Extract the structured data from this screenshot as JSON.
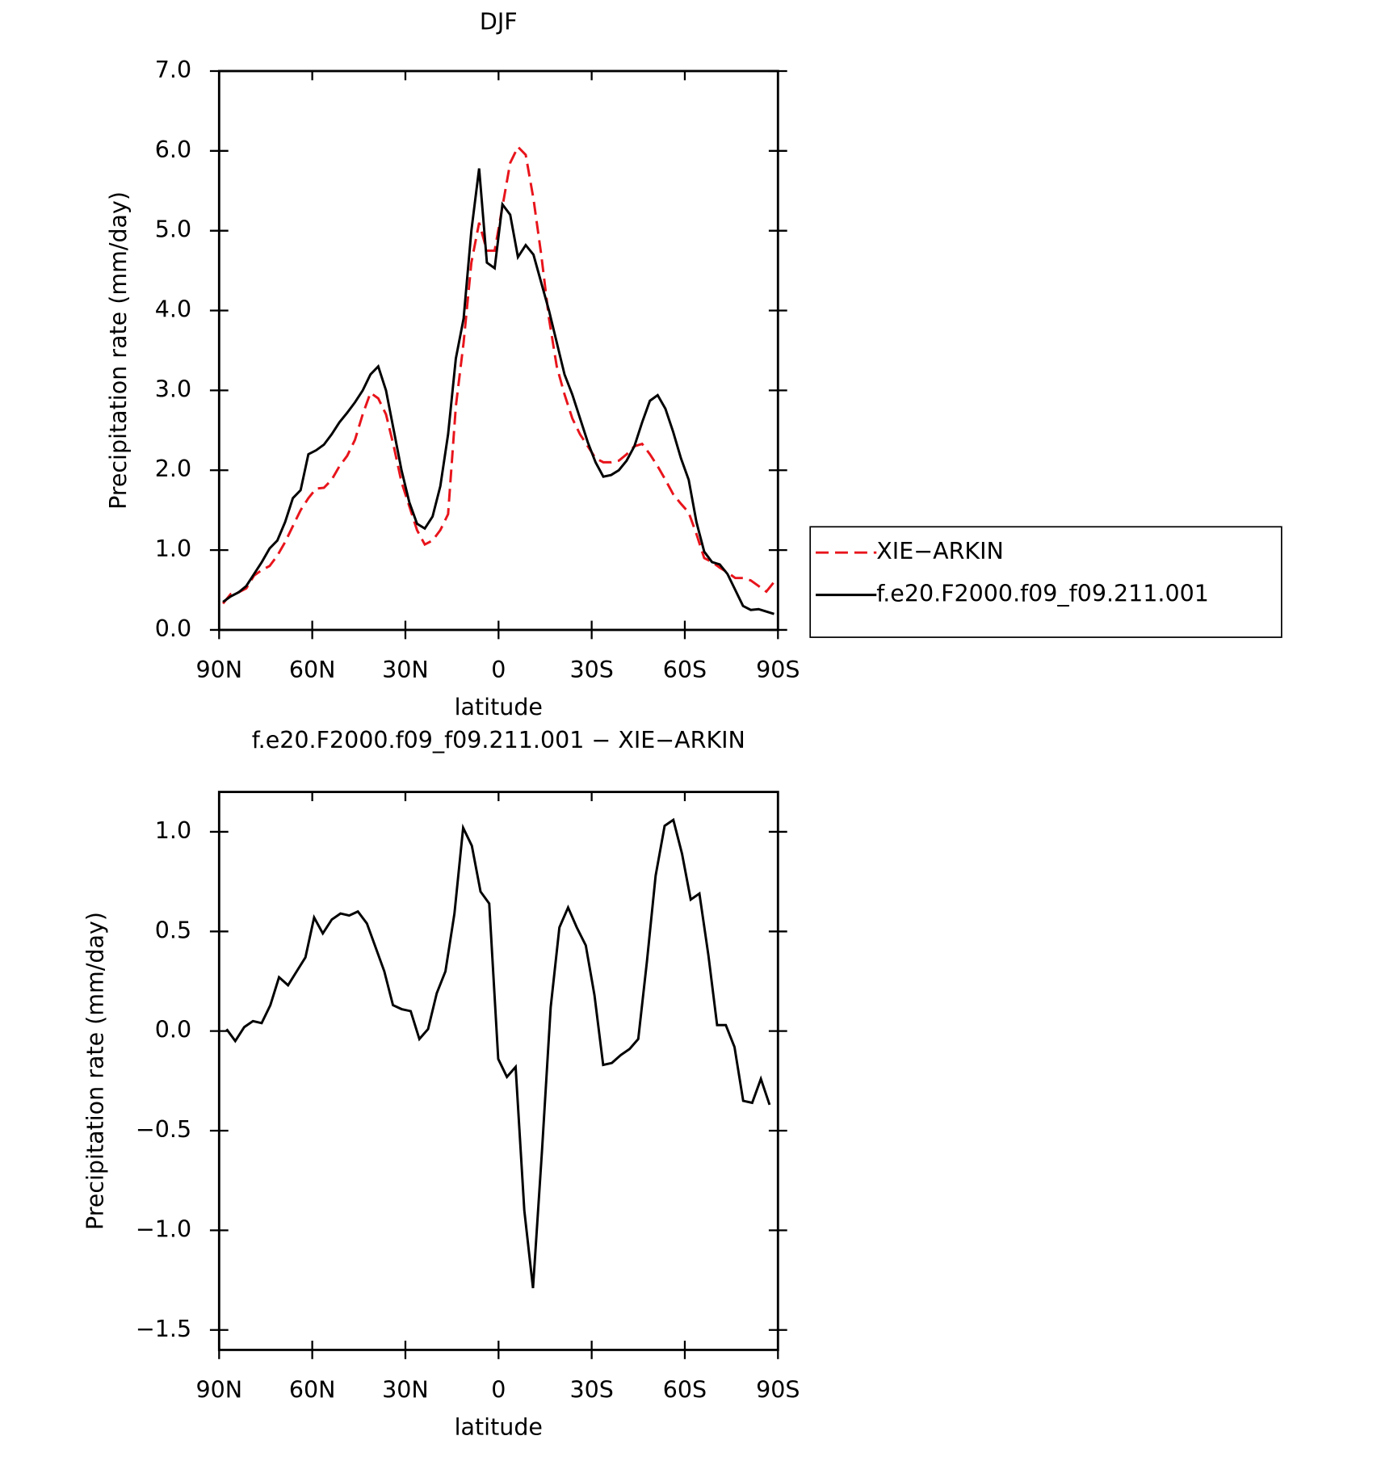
{
  "chart_data": [
    {
      "type": "line",
      "title": "DJF",
      "xlabel": "latitude",
      "ylabel": "Precipitation rate (mm/day)",
      "xlim": [
        90,
        -90
      ],
      "xticks": [
        {
          "value": 90,
          "label": "90N"
        },
        {
          "value": 60,
          "label": "60N"
        },
        {
          "value": 30,
          "label": "30N"
        },
        0,
        {
          "value": -30,
          "label": "30S"
        },
        {
          "value": -60,
          "label": "60S"
        },
        {
          "value": -90,
          "label": "90S"
        }
      ],
      "ylim": [
        0,
        7
      ],
      "yticks": [
        {
          "value": 0,
          "label": "0.0"
        },
        {
          "value": 1,
          "label": "1.0"
        },
        {
          "value": 2,
          "label": "2.0"
        },
        {
          "value": 3,
          "label": "3.0"
        },
        {
          "value": 4,
          "label": "4.0"
        },
        {
          "value": 5,
          "label": "5.0"
        },
        {
          "value": 6,
          "label": "6.0"
        },
        {
          "value": 7,
          "label": "7.0"
        }
      ],
      "legend": "right",
      "x": [
        88.75,
        86.25,
        83.75,
        81.25,
        78.75,
        76.25,
        73.75,
        71.25,
        68.75,
        66.25,
        63.75,
        61.25,
        58.75,
        56.25,
        53.75,
        51.25,
        48.75,
        46.25,
        43.75,
        41.25,
        38.75,
        36.25,
        33.75,
        31.25,
        28.75,
        26.25,
        23.75,
        21.25,
        18.75,
        16.25,
        13.75,
        11.25,
        8.75,
        6.25,
        3.75,
        1.25,
        -1.25,
        -3.75,
        -6.25,
        -8.75,
        -11.25,
        -13.75,
        -16.25,
        -18.75,
        -21.25,
        -23.75,
        -26.25,
        -28.75,
        -31.25,
        -33.75,
        -36.25,
        -38.75,
        -41.25,
        -43.75,
        -46.25,
        -48.75,
        -51.25,
        -53.75,
        -56.25,
        -58.75,
        -61.25,
        -63.75,
        -66.25,
        -68.75,
        -71.25,
        -73.75,
        -76.25,
        -78.75,
        -81.25,
        -83.75,
        -86.25,
        -88.75
      ],
      "series": [
        {
          "name": "XIE−ARKIN",
          "color": "#e8141b",
          "dash": true,
          "values": [
            0.33,
            0.45,
            0.47,
            0.52,
            0.68,
            0.75,
            0.8,
            0.93,
            1.1,
            1.3,
            1.5,
            1.65,
            1.77,
            1.78,
            1.88,
            2.05,
            2.18,
            2.38,
            2.7,
            2.97,
            2.9,
            2.7,
            2.3,
            1.85,
            1.55,
            1.25,
            1.07,
            1.12,
            1.25,
            1.45,
            2.8,
            3.6,
            4.6,
            5.1,
            4.75,
            4.75,
            5.3,
            5.85,
            6.05,
            5.95,
            5.4,
            4.7,
            3.9,
            3.3,
            2.95,
            2.65,
            2.45,
            2.3,
            2.15,
            2.1,
            2.1,
            2.12,
            2.2,
            2.3,
            2.33,
            2.2,
            2.05,
            1.88,
            1.7,
            1.58,
            1.47,
            1.2,
            0.9,
            0.85,
            0.78,
            0.72,
            0.65,
            0.65,
            0.62,
            0.55,
            0.48,
            0.6
          ]
        },
        {
          "name": "f.e20.F2000.f09_f09.211.001",
          "color": "#000000",
          "dash": false,
          "values": [
            0.35,
            0.42,
            0.47,
            0.55,
            0.7,
            0.85,
            1.02,
            1.12,
            1.35,
            1.65,
            1.75,
            2.2,
            2.25,
            2.32,
            2.45,
            2.6,
            2.72,
            2.85,
            3.0,
            3.2,
            3.3,
            3.0,
            2.5,
            2.0,
            1.6,
            1.33,
            1.27,
            1.42,
            1.8,
            2.45,
            3.4,
            3.9,
            5.0,
            5.78,
            4.6,
            4.53,
            5.33,
            5.2,
            4.67,
            4.82,
            4.7,
            4.35,
            4.0,
            3.6,
            3.2,
            2.95,
            2.65,
            2.35,
            2.1,
            1.92,
            1.94,
            2.0,
            2.12,
            2.3,
            2.6,
            2.87,
            2.94,
            2.77,
            2.48,
            2.15,
            1.88,
            1.35,
            0.98,
            0.85,
            0.82,
            0.7,
            0.5,
            0.3,
            0.25,
            0.26,
            0.23,
            0.2
          ]
        }
      ]
    },
    {
      "type": "line",
      "title": "f.e20.F2000.f09_f09.211.001 − XIE−ARKIN",
      "xlabel": "latitude",
      "ylabel": "Precipitation rate (mm/day)",
      "xlim": [
        90,
        -90
      ],
      "xticks": [
        {
          "value": 90,
          "label": "90N"
        },
        {
          "value": 60,
          "label": "60N"
        },
        {
          "value": 30,
          "label": "30N"
        },
        0,
        {
          "value": -30,
          "label": "30S"
        },
        {
          "value": -60,
          "label": "60S"
        },
        {
          "value": -90,
          "label": "90S"
        }
      ],
      "ylim": [
        -1.6,
        1.2
      ],
      "yticks": [
        {
          "value": -1.5,
          "label": "−1.5"
        },
        {
          "value": -1,
          "label": "−1.0"
        },
        {
          "value": -0.5,
          "label": "−0.5"
        },
        {
          "value": 0,
          "label": "0.0"
        },
        0.5,
        {
          "value": 1,
          "label": "1.0"
        }
      ],
      "color": "#000000",
      "x": [
        87.6,
        84.8,
        81.9,
        79.1,
        76.3,
        73.5,
        70.7,
        67.8,
        65.0,
        62.2,
        59.4,
        56.6,
        53.7,
        50.9,
        48.1,
        45.3,
        42.4,
        39.6,
        36.8,
        34.0,
        31.2,
        28.3,
        25.5,
        22.7,
        19.9,
        17.1,
        14.2,
        11.4,
        8.6,
        5.8,
        3.0,
        0.1,
        -2.7,
        -5.5,
        -8.3,
        -11.1,
        -14.0,
        -16.8,
        -19.6,
        -22.4,
        -25.2,
        -28.1,
        -30.9,
        -33.7,
        -36.5,
        -39.4,
        -42.2,
        -45.0,
        -47.8,
        -50.6,
        -53.5,
        -56.3,
        -59.1,
        -61.9,
        -64.7,
        -67.6,
        -70.4,
        -73.2,
        -76.0,
        -78.8,
        -81.7,
        -84.5,
        -87.3
      ],
      "values": [
        0.01,
        -0.05,
        0.02,
        0.05,
        0.04,
        0.13,
        0.27,
        0.23,
        0.3,
        0.37,
        0.57,
        0.49,
        0.56,
        0.59,
        0.58,
        0.6,
        0.54,
        0.42,
        0.3,
        0.13,
        0.11,
        0.1,
        -0.04,
        0.01,
        0.19,
        0.3,
        0.59,
        1.02,
        0.93,
        0.7,
        0.64,
        -0.14,
        -0.23,
        -0.18,
        -0.9,
        -1.29,
        -0.6,
        0.12,
        0.52,
        0.62,
        0.52,
        0.43,
        0.18,
        -0.17,
        -0.16,
        -0.12,
        -0.09,
        -0.04,
        0.35,
        0.78,
        1.03,
        1.06,
        0.89,
        0.66,
        0.69,
        0.38,
        0.03,
        0.03,
        -0.08,
        -0.35,
        -0.36,
        -0.24,
        -0.37
      ]
    }
  ]
}
